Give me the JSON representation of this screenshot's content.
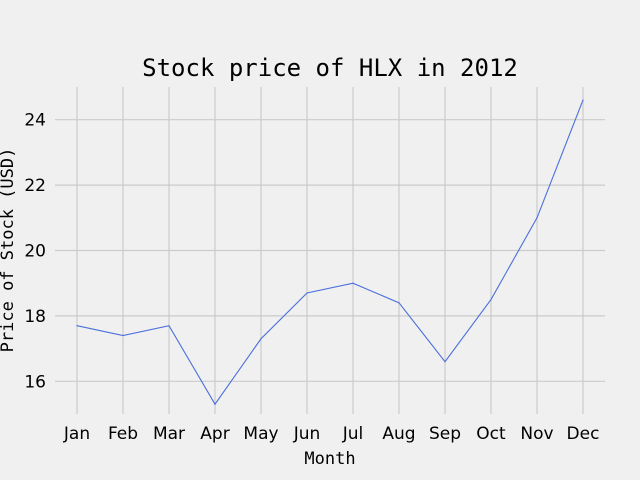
{
  "chart_data": {
    "type": "line",
    "title": "Stock price of HLX in 2012",
    "xlabel": "Month",
    "ylabel": "Price of Stock (USD)",
    "categories": [
      "Jan",
      "Feb",
      "Mar",
      "Apr",
      "May",
      "Jun",
      "Jul",
      "Aug",
      "Sep",
      "Oct",
      "Nov",
      "Dec"
    ],
    "series": [
      {
        "values": [
          17.7,
          17.4,
          17.7,
          15.3,
          17.3,
          18.7,
          19.0,
          18.4,
          16.6,
          18.5,
          21.0,
          24.6
        ],
        "color": "#4a6fdc"
      }
    ],
    "ylim": [
      15.0,
      25.0
    ],
    "yticks": [
      16,
      18,
      20,
      22,
      24
    ],
    "grid": true,
    "legend": "none",
    "colors": {
      "background": "#f0f0f0",
      "grid": "#cbcbcb",
      "text": "#000000"
    }
  }
}
